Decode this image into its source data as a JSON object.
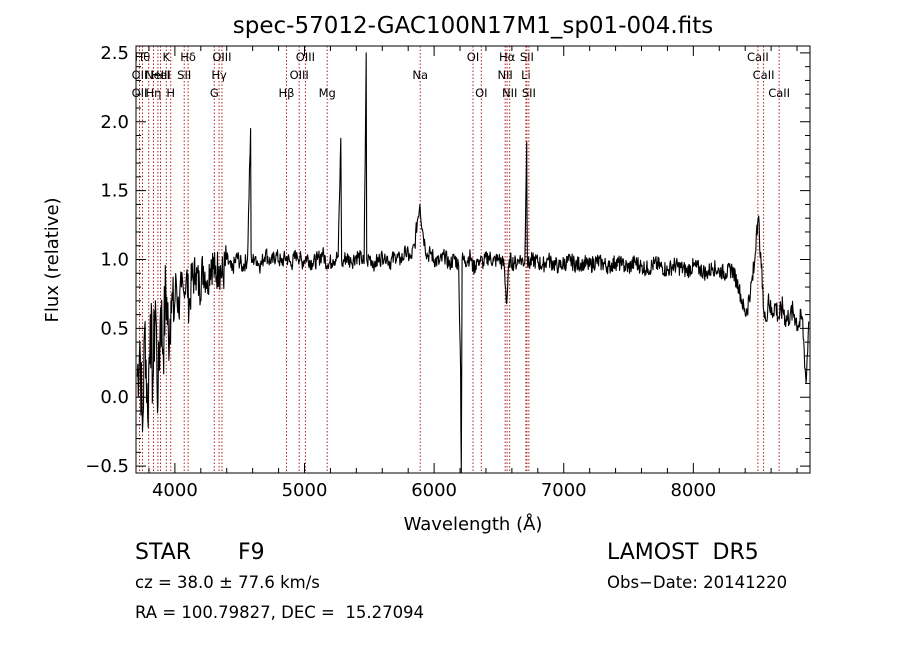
{
  "chart_data": {
    "type": "line",
    "title": "spec-57012-GAC100N17M1_sp01-004.fits",
    "xlabel": "Wavelength (Å)",
    "ylabel": "Flux (relative)",
    "xlim": [
      3700,
      8900
    ],
    "ylim": [
      -0.55,
      2.55
    ],
    "xticks": [
      {
        "v": 4000,
        "label": "4000"
      },
      {
        "v": 5000,
        "label": "5000"
      },
      {
        "v": 6000,
        "label": "6000"
      },
      {
        "v": 7000,
        "label": "7000"
      },
      {
        "v": 8000,
        "label": "8000"
      }
    ],
    "yticks": [
      {
        "v": -0.5,
        "label": "−0.5"
      },
      {
        "v": 0.0,
        "label": "0.0"
      },
      {
        "v": 0.5,
        "label": "0.5"
      },
      {
        "v": 1.0,
        "label": "1.0"
      },
      {
        "v": 1.5,
        "label": "1.5"
      },
      {
        "v": 2.0,
        "label": "2.0"
      },
      {
        "v": 2.5,
        "label": "2.5"
      }
    ],
    "grid": false,
    "line_color": "#000000",
    "marker_color": "#b22222",
    "spectrum": {
      "x": [
        3710,
        3730,
        3750,
        3770,
        3790,
        3810,
        3830,
        3850,
        3870,
        3890,
        3910,
        3930,
        3950,
        3970,
        3990,
        4010,
        4030,
        4050,
        4070,
        4090,
        4110,
        4130,
        4160,
        4190,
        4220,
        4250,
        4280,
        4310,
        4340,
        4370,
        4400,
        4440,
        4480,
        4520,
        4560,
        4584,
        4588,
        4592,
        4620,
        4660,
        4700,
        4740,
        4780,
        4820,
        4860,
        4900,
        4940,
        4980,
        5020,
        5060,
        5100,
        5140,
        5180,
        5220,
        5260,
        5280,
        5286,
        5292,
        5320,
        5360,
        5400,
        5440,
        5460,
        5476,
        5480,
        5484,
        5500,
        5540,
        5580,
        5620,
        5660,
        5700,
        5740,
        5780,
        5820,
        5850,
        5870,
        5890,
        5910,
        5930,
        5950,
        5970,
        6000,
        6040,
        6080,
        6120,
        6160,
        6190,
        6204,
        6210,
        6216,
        6240,
        6280,
        6300,
        6340,
        6380,
        6420,
        6460,
        6500,
        6540,
        6560,
        6580,
        6620,
        6660,
        6700,
        6714,
        6720,
        6726,
        6760,
        6800,
        6840,
        6880,
        6920,
        6960,
        7000,
        7050,
        7100,
        7150,
        7200,
        7250,
        7300,
        7350,
        7400,
        7450,
        7500,
        7550,
        7600,
        7650,
        7700,
        7750,
        7800,
        7850,
        7900,
        7950,
        8000,
        8050,
        8100,
        8150,
        8200,
        8250,
        8300,
        8350,
        8400,
        8440,
        8470,
        8490,
        8500,
        8520,
        8540,
        8560,
        8580,
        8600,
        8630,
        8660,
        8690,
        8720,
        8750,
        8780,
        8810,
        8840,
        8870,
        8890
      ],
      "y": [
        0.15,
        0.4,
        -0.25,
        0.55,
        -0.15,
        0.6,
        0.1,
        0.7,
        -0.05,
        0.65,
        0.35,
        0.8,
        0.45,
        0.7,
        0.55,
        0.85,
        0.6,
        0.8,
        0.75,
        0.9,
        0.65,
        0.85,
        0.9,
        0.8,
        0.95,
        0.85,
        1.0,
        0.9,
        0.95,
        0.88,
        1.0,
        0.92,
        1.02,
        0.95,
        1.0,
        1.95,
        1.05,
        0.98,
        1.02,
        0.95,
        1.05,
        0.97,
        1.03,
        0.98,
        1.02,
        0.96,
        1.05,
        0.98,
        1.02,
        0.97,
        1.0,
        1.04,
        0.96,
        1.0,
        1.02,
        1.88,
        1.0,
        0.97,
        1.02,
        0.98,
        1.03,
        1.0,
        0.97,
        2.5,
        1.0,
        0.98,
        1.02,
        0.97,
        1.0,
        1.04,
        0.98,
        1.02,
        0.99,
        1.05,
        1.01,
        1.1,
        1.28,
        1.4,
        1.22,
        1.1,
        1.02,
        1.06,
        1.0,
        0.98,
        1.02,
        0.97,
        1.01,
        0.95,
        0.2,
        -0.6,
        1.0,
        0.99,
        1.02,
        0.93,
        1.0,
        0.98,
        1.02,
        0.99,
        1.0,
        0.96,
        0.68,
        1.0,
        0.97,
        1.0,
        0.98,
        1.85,
        1.0,
        0.96,
        1.0,
        0.98,
        0.96,
        1.0,
        0.97,
        0.95,
        0.97,
        0.99,
        0.96,
        0.98,
        0.95,
        0.99,
        0.97,
        0.95,
        0.98,
        0.96,
        0.94,
        0.98,
        0.95,
        0.93,
        0.97,
        0.95,
        0.92,
        0.96,
        0.94,
        0.92,
        0.95,
        0.93,
        0.9,
        0.94,
        0.92,
        0.9,
        0.93,
        0.8,
        0.6,
        0.75,
        0.95,
        1.25,
        1.3,
        1.05,
        0.65,
        0.55,
        0.75,
        0.6,
        0.68,
        0.58,
        0.65,
        0.55,
        0.62,
        0.6,
        0.52,
        0.58,
        0.1,
        0.55
      ]
    },
    "markers": [
      {
        "x": 3750,
        "label": "Hθ",
        "row": 0
      },
      {
        "x": 3727,
        "label": "OII",
        "row": 1
      },
      {
        "x": 3727,
        "label": "OII",
        "row": 2
      },
      {
        "x": 3798,
        "label": "",
        "row": 0
      },
      {
        "x": 3835,
        "label": "Hη",
        "row": 2
      },
      {
        "x": 3869,
        "label": "NeIII",
        "row": 1
      },
      {
        "x": 3889,
        "label": "HeI",
        "row": 1
      },
      {
        "x": 3934,
        "label": "K",
        "row": 0
      },
      {
        "x": 3968,
        "label": "H",
        "row": 2
      },
      {
        "x": 4072,
        "label": "SII",
        "row": 1
      },
      {
        "x": 4102,
        "label": "Hδ",
        "row": 0
      },
      {
        "x": 4304,
        "label": "G",
        "row": 2
      },
      {
        "x": 4341,
        "label": "Hγ",
        "row": 1
      },
      {
        "x": 4363,
        "label": "OIII",
        "row": 0
      },
      {
        "x": 4861,
        "label": "Hβ",
        "row": 2
      },
      {
        "x": 4959,
        "label": "OIII",
        "row": 1
      },
      {
        "x": 5007,
        "label": "OIII",
        "row": 0
      },
      {
        "x": 5175,
        "label": "Mg",
        "row": 2
      },
      {
        "x": 5893,
        "label": "Na",
        "row": 1
      },
      {
        "x": 6300,
        "label": "OI",
        "row": 0
      },
      {
        "x": 6364,
        "label": "OI",
        "row": 2
      },
      {
        "x": 6548,
        "label": "NII",
        "row": 1
      },
      {
        "x": 6563,
        "label": "Hα",
        "row": 0
      },
      {
        "x": 6583,
        "label": "NII",
        "row": 2
      },
      {
        "x": 6708,
        "label": "Li",
        "row": 1
      },
      {
        "x": 6716,
        "label": "SII",
        "row": 0
      },
      {
        "x": 6731,
        "label": "SII",
        "row": 2
      },
      {
        "x": 8498,
        "label": "CaII",
        "row": 0
      },
      {
        "x": 8542,
        "label": "CaII",
        "row": 1
      },
      {
        "x": 8662,
        "label": "CaII",
        "row": 2
      }
    ]
  },
  "footer": {
    "class": "STAR",
    "subclass": "F9",
    "survey": "LAMOST  DR5",
    "cz": "cz = 38.0 ± 77.6 km/s",
    "obs_date": "Obs−Date: 20141220",
    "coords": "RA = 100.79827, DEC =  15.27094"
  }
}
